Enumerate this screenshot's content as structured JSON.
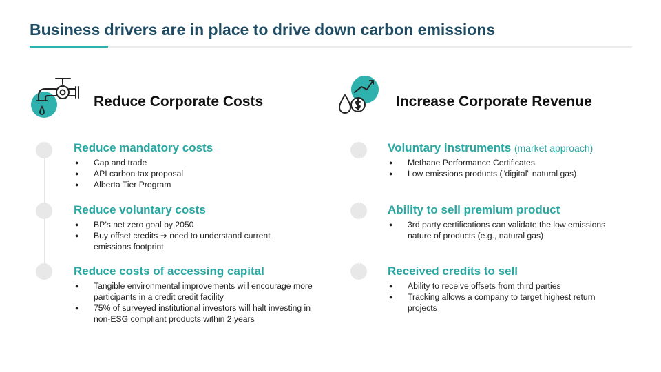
{
  "title": "Business drivers are in place to drive down carbon emissions",
  "left": {
    "icon": "faucet-drip-icon",
    "heading": "Reduce Corporate Costs",
    "sections": [
      {
        "title": "Reduce mandatory costs",
        "bullets": [
          "Cap and trade",
          "API carbon tax proposal",
          "Alberta Tier Program"
        ]
      },
      {
        "title": "Reduce voluntary costs",
        "bullets": [
          "BP’s net zero goal by 2050",
          "Buy offset credits ➜ need to understand current emissions footprint"
        ]
      },
      {
        "title": "Reduce costs of accessing capital",
        "bullets": [
          "Tangible environmental improvements will encourage more participants in a credit credit facility",
          "75% of surveyed institutional investors will halt investing in non-ESG compliant products within 2 years"
        ]
      }
    ]
  },
  "right": {
    "icon": "oil-drop-dollar-growth-icon",
    "heading": "Increase Corporate Revenue",
    "sections": [
      {
        "title": "Voluntary instruments",
        "note": "(market approach)",
        "bullets": [
          "Methane Performance Certificates",
          "Low emissions products (“digital” natural gas)"
        ]
      },
      {
        "title": "Ability to sell premium product",
        "bullets": [
          "3rd party certifications can validate the low emissions nature of products (e.g., natural gas)"
        ]
      },
      {
        "title": "Received credits to sell",
        "bullets": [
          "Ability to receive offsets from third parties",
          "Tracking allows a company to target highest return projects"
        ]
      }
    ]
  },
  "colors": {
    "title": "#1f4c63",
    "accent": "#2fb1ae",
    "section_title": "#2aa7a3",
    "dot": "#e8e8e8"
  }
}
